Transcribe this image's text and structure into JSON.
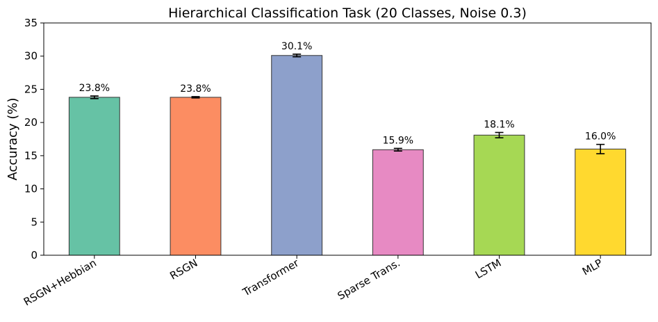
{
  "chart_data": {
    "type": "bar",
    "title": "Hierarchical Classification Task (20 Classes, Noise 0.3)",
    "xlabel": "",
    "ylabel": "Accuracy (%)",
    "ylim": [
      0,
      35
    ],
    "yticks": [
      0,
      5,
      10,
      15,
      20,
      25,
      30,
      35
    ],
    "grid": false,
    "categories": [
      "RSGN+Hebbian",
      "RSGN",
      "Transformer",
      "Sparse Trans.",
      "LSTM",
      "MLP"
    ],
    "values": [
      23.8,
      23.8,
      30.1,
      15.9,
      18.1,
      16.0
    ],
    "errors": [
      0.2,
      0.1,
      0.2,
      0.2,
      0.4,
      0.7
    ],
    "data_labels": [
      "23.8%",
      "23.8%",
      "30.1%",
      "15.9%",
      "18.1%",
      "16.0%"
    ],
    "colors": [
      "#66c2a5",
      "#fc8d62",
      "#8da0cb",
      "#e78ac3",
      "#a6d854",
      "#ffd92f"
    ]
  }
}
